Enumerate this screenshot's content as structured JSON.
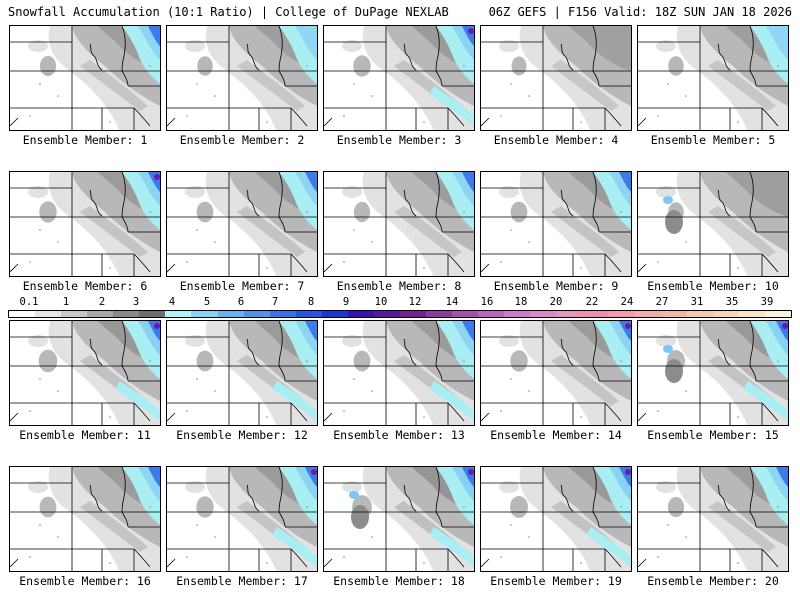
{
  "header": {
    "left": "Snowfall Accumulation (10:1 Ratio) | College of DuPage NEXLAB",
    "right": "06Z GEFS | F156 Valid: 18Z SUN JAN 18 2026"
  },
  "members": [
    {
      "caption": "Ensemble Member: 1",
      "intensity": 0.35,
      "blue_ne": true,
      "blue_se": false,
      "heavy_west": false
    },
    {
      "caption": "Ensemble Member: 2",
      "intensity": 0.3,
      "blue_ne": true,
      "blue_se": false,
      "heavy_west": false
    },
    {
      "caption": "Ensemble Member: 3",
      "intensity": 0.45,
      "blue_ne": true,
      "blue_se": true,
      "heavy_west": false
    },
    {
      "caption": "Ensemble Member: 4",
      "intensity": 0.25,
      "blue_ne": false,
      "blue_se": false,
      "heavy_west": false
    },
    {
      "caption": "Ensemble Member: 5",
      "intensity": 0.3,
      "blue_ne": true,
      "blue_se": false,
      "heavy_west": false
    },
    {
      "caption": "Ensemble Member: 6",
      "intensity": 0.45,
      "blue_ne": true,
      "blue_se": false,
      "heavy_west": false
    },
    {
      "caption": "Ensemble Member: 7",
      "intensity": 0.4,
      "blue_ne": true,
      "blue_se": false,
      "heavy_west": false
    },
    {
      "caption": "Ensemble Member: 8",
      "intensity": 0.35,
      "blue_ne": true,
      "blue_se": false,
      "heavy_west": false
    },
    {
      "caption": "Ensemble Member: 9",
      "intensity": 0.4,
      "blue_ne": true,
      "blue_se": false,
      "heavy_west": false
    },
    {
      "caption": "Ensemble Member: 10",
      "intensity": 0.3,
      "blue_ne": false,
      "blue_se": false,
      "heavy_west": true
    },
    {
      "caption": "Ensemble Member: 11",
      "intensity": 0.55,
      "blue_ne": true,
      "blue_se": true,
      "heavy_west": false
    },
    {
      "caption": "Ensemble Member: 12",
      "intensity": 0.4,
      "blue_ne": true,
      "blue_se": true,
      "heavy_west": false
    },
    {
      "caption": "Ensemble Member: 13",
      "intensity": 0.4,
      "blue_ne": true,
      "blue_se": true,
      "heavy_west": false
    },
    {
      "caption": "Ensemble Member: 14",
      "intensity": 0.45,
      "blue_ne": true,
      "blue_se": false,
      "heavy_west": false
    },
    {
      "caption": "Ensemble Member: 15",
      "intensity": 0.5,
      "blue_ne": true,
      "blue_se": true,
      "heavy_west": true
    },
    {
      "caption": "Ensemble Member: 16",
      "intensity": 0.4,
      "blue_ne": true,
      "blue_se": false,
      "heavy_west": false
    },
    {
      "caption": "Ensemble Member: 17",
      "intensity": 0.45,
      "blue_ne": true,
      "blue_se": true,
      "heavy_west": false
    },
    {
      "caption": "Ensemble Member: 18",
      "intensity": 0.65,
      "blue_ne": true,
      "blue_se": true,
      "heavy_west": true
    },
    {
      "caption": "Ensemble Member: 19",
      "intensity": 0.5,
      "blue_ne": true,
      "blue_se": true,
      "heavy_west": false
    },
    {
      "caption": "Ensemble Member: 20",
      "intensity": 0.35,
      "blue_ne": true,
      "blue_se": false,
      "heavy_west": false
    }
  ],
  "colorbar": {
    "labels": [
      "0.1",
      "1",
      "2",
      "3",
      "4",
      "5",
      "6",
      "7",
      "8",
      "9",
      "10",
      "12",
      "14",
      "16",
      "18",
      "20",
      "22",
      "24",
      "27",
      "31",
      "35",
      "39"
    ],
    "colors": [
      "#ffffff",
      "#e6e6e6",
      "#c8c8c8",
      "#a8a8a8",
      "#8a8a8a",
      "#6e6e6e",
      "#aef5f5",
      "#87d3f7",
      "#6ab3f2",
      "#5293ec",
      "#3b73e6",
      "#2555e2",
      "#1b36d4",
      "#3614b3",
      "#57179e",
      "#752290",
      "#8f3aa0",
      "#a74eae",
      "#bc63bd",
      "#d07bc9",
      "#dd87c6",
      "#e797bf",
      "#ee8fb0",
      "#f39bb0",
      "#f5abad",
      "#f6b8a5",
      "#f7c8ad",
      "#f9d6b8",
      "#fbe3c8",
      "#fdf0dd"
    ]
  },
  "legend_colors": {
    "light_gray": "#e2e2e2",
    "mid_gray": "#b8b8b8",
    "dark_gray": "#8c8c8c",
    "cyan": "#a8eef2",
    "light_blue": "#7ec6f4",
    "blue": "#3e7bea",
    "dark_blue": "#2a3ed6",
    "purple": "#6a1aa5"
  }
}
